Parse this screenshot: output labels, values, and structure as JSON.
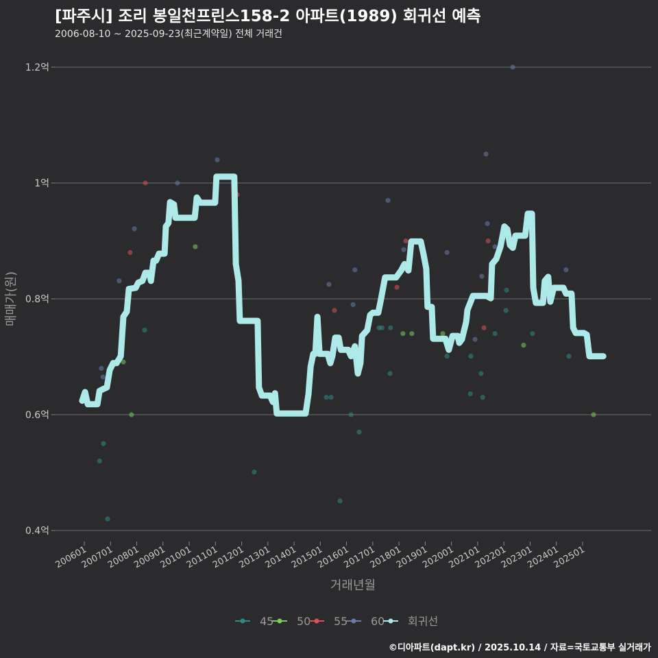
{
  "title": "[파주시] 조리 봉일천프린스158-2 아파트(1989) 회귀선 예측",
  "subtitle": "2006-08-10 ~ 2025-09-23(최근계약일) 전체 거래건",
  "footer": "©디아파트(dapt.kr) / 2025.10.14 / 자료=국토교통부 실거래가",
  "chart_data": {
    "type": "scatter",
    "xlabel": "거래년월",
    "ylabel": "매매가(원)",
    "xlim": [
      2005.4,
      2028.3
    ],
    "ylim": [
      0.38,
      1.24
    ],
    "yticks": [
      {
        "v": 0.4,
        "label": "0.4억"
      },
      {
        "v": 0.6,
        "label": "0.6억"
      },
      {
        "v": 0.8,
        "label": "0.8억"
      },
      {
        "v": 1.0,
        "label": "1억"
      },
      {
        "v": 1.2,
        "label": "1.2억"
      }
    ],
    "xticks": [
      {
        "v": 2006,
        "label": "200601"
      },
      {
        "v": 2007,
        "label": "200701"
      },
      {
        "v": 2008,
        "label": "200801"
      },
      {
        "v": 2009,
        "label": "200901"
      },
      {
        "v": 2010,
        "label": "201001"
      },
      {
        "v": 2011,
        "label": "201101"
      },
      {
        "v": 2012,
        "label": "201201"
      },
      {
        "v": 2013,
        "label": "201301"
      },
      {
        "v": 2014,
        "label": "201401"
      },
      {
        "v": 2015,
        "label": "201501"
      },
      {
        "v": 2016,
        "label": "201601"
      },
      {
        "v": 2017,
        "label": "201701"
      },
      {
        "v": 2018,
        "label": "201801"
      },
      {
        "v": 2019,
        "label": "201901"
      },
      {
        "v": 2020,
        "label": "202001"
      },
      {
        "v": 2021,
        "label": "202101"
      },
      {
        "v": 2022,
        "label": "202201"
      },
      {
        "v": 2023,
        "label": "202301"
      },
      {
        "v": 2024,
        "label": "202401"
      },
      {
        "v": 2025,
        "label": "202501"
      }
    ],
    "legend": {
      "position": "bottom",
      "entries": [
        "45",
        "50",
        "55",
        "60",
        "회귀선"
      ]
    },
    "colors": {
      "45": "#2f8a85",
      "50": "#7ccc5e",
      "55": "#d9525a",
      "60": "#6c7ca8",
      "회귀선": "#aee9ea"
    },
    "series": [
      {
        "name": "45",
        "points": [
          [
            2006.58,
            0.52
          ],
          [
            2006.73,
            0.55
          ],
          [
            2006.89,
            0.42
          ],
          [
            2008.3,
            0.746
          ],
          [
            2012.48,
            0.501
          ],
          [
            2015.23,
            0.63
          ],
          [
            2015.41,
            0.63
          ],
          [
            2015.75,
            0.451
          ],
          [
            2016.17,
            0.6
          ],
          [
            2016.48,
            0.57
          ],
          [
            2017.66,
            0.671
          ],
          [
            2017.68,
            0.75
          ],
          [
            2017.24,
            0.75
          ],
          [
            2017.35,
            0.75
          ],
          [
            2019.83,
            0.701
          ],
          [
            2020.72,
            0.636
          ],
          [
            2020.74,
            0.701
          ],
          [
            2021.13,
            0.671
          ],
          [
            2021.19,
            0.63
          ],
          [
            2021.66,
            0.74
          ],
          [
            2022.08,
            0.78
          ],
          [
            2022.1,
            0.815
          ],
          [
            2023.09,
            0.74
          ],
          [
            2024.48,
            0.701
          ]
        ]
      },
      {
        "name": "50",
        "points": [
          [
            2007.8,
            0.6
          ],
          [
            2007.49,
            0.691
          ],
          [
            2010.23,
            0.89
          ],
          [
            2018.15,
            0.74
          ],
          [
            2018.49,
            0.74
          ],
          [
            2019.67,
            0.74
          ],
          [
            2022.75,
            0.72
          ],
          [
            2025.42,
            0.6
          ]
        ]
      },
      {
        "name": "55",
        "points": [
          [
            2007.75,
            0.88
          ],
          [
            2008.33,
            1.0
          ],
          [
            2011.83,
            0.98
          ],
          [
            2015.54,
            0.78
          ],
          [
            2017.92,
            0.82
          ],
          [
            2018.26,
            0.9
          ],
          [
            2021.24,
            0.75
          ],
          [
            2021.4,
            0.9
          ]
        ]
      },
      {
        "name": "60",
        "points": [
          [
            2006.65,
            0.68
          ],
          [
            2006.71,
            0.665
          ],
          [
            2007.33,
            0.831
          ],
          [
            2007.91,
            0.921
          ],
          [
            2009.55,
            1.0
          ],
          [
            2011.07,
            1.04
          ],
          [
            2015.33,
            0.825
          ],
          [
            2016.25,
            0.79
          ],
          [
            2016.32,
            0.85
          ],
          [
            2017.58,
            0.97
          ],
          [
            2018.18,
            0.885
          ],
          [
            2019.83,
            0.88
          ],
          [
            2021.16,
            0.839
          ],
          [
            2021.32,
            1.05
          ],
          [
            2021.37,
            0.93
          ],
          [
            2021.66,
            0.89
          ],
          [
            2022.34,
            1.2
          ],
          [
            2020.9,
            0.73
          ],
          [
            2024.37,
            0.85
          ]
        ]
      }
    ],
    "regression": [
      [
        2005.92,
        0.624
      ],
      [
        2006.03,
        0.639
      ],
      [
        2006.13,
        0.618
      ],
      [
        2006.5,
        0.618
      ],
      [
        2006.58,
        0.641
      ],
      [
        2006.71,
        0.644
      ],
      [
        2006.86,
        0.647
      ],
      [
        2006.97,
        0.677
      ],
      [
        2007.1,
        0.689
      ],
      [
        2007.23,
        0.689
      ],
      [
        2007.39,
        0.701
      ],
      [
        2007.49,
        0.769
      ],
      [
        2007.62,
        0.778
      ],
      [
        2007.7,
        0.817
      ],
      [
        2007.96,
        0.819
      ],
      [
        2008.06,
        0.828
      ],
      [
        2008.22,
        0.831
      ],
      [
        2008.33,
        0.845
      ],
      [
        2008.48,
        0.845
      ],
      [
        2008.54,
        0.831
      ],
      [
        2008.64,
        0.866
      ],
      [
        2008.74,
        0.866
      ],
      [
        2008.85,
        0.878
      ],
      [
        2009.06,
        0.878
      ],
      [
        2009.11,
        0.925
      ],
      [
        2009.21,
        0.931
      ],
      [
        2009.27,
        0.967
      ],
      [
        2009.42,
        0.963
      ],
      [
        2009.48,
        0.94
      ],
      [
        2010.21,
        0.94
      ],
      [
        2010.29,
        0.975
      ],
      [
        2010.42,
        0.966
      ],
      [
        2010.99,
        0.966
      ],
      [
        2011.04,
        1.011
      ],
      [
        2011.72,
        1.011
      ],
      [
        2011.78,
        0.86
      ],
      [
        2011.88,
        0.831
      ],
      [
        2011.93,
        0.762
      ],
      [
        2012.61,
        0.762
      ],
      [
        2012.66,
        0.647
      ],
      [
        2012.77,
        0.633
      ],
      [
        2013.08,
        0.633
      ],
      [
        2013.19,
        0.622
      ],
      [
        2013.27,
        0.637
      ],
      [
        2013.34,
        0.602
      ],
      [
        2014.44,
        0.602
      ],
      [
        2014.55,
        0.636
      ],
      [
        2014.63,
        0.683
      ],
      [
        2014.73,
        0.705
      ],
      [
        2014.81,
        0.705
      ],
      [
        2014.89,
        0.769
      ],
      [
        2014.97,
        0.705
      ],
      [
        2015.28,
        0.705
      ],
      [
        2015.38,
        0.689
      ],
      [
        2015.46,
        0.701
      ],
      [
        2015.57,
        0.733
      ],
      [
        2015.7,
        0.733
      ],
      [
        2015.78,
        0.712
      ],
      [
        2016.06,
        0.712
      ],
      [
        2016.17,
        0.701
      ],
      [
        2016.32,
        0.718
      ],
      [
        2016.43,
        0.671
      ],
      [
        2016.53,
        0.689
      ],
      [
        2016.59,
        0.736
      ],
      [
        2016.79,
        0.746
      ],
      [
        2016.9,
        0.772
      ],
      [
        2017.0,
        0.776
      ],
      [
        2017.21,
        0.776
      ],
      [
        2017.32,
        0.801
      ],
      [
        2017.47,
        0.837
      ],
      [
        2017.89,
        0.837
      ],
      [
        2018.08,
        0.849
      ],
      [
        2018.21,
        0.86
      ],
      [
        2018.36,
        0.849
      ],
      [
        2018.47,
        0.899
      ],
      [
        2018.83,
        0.899
      ],
      [
        2018.94,
        0.876
      ],
      [
        2019.04,
        0.852
      ],
      [
        2019.09,
        0.786
      ],
      [
        2019.25,
        0.786
      ],
      [
        2019.3,
        0.731
      ],
      [
        2019.77,
        0.731
      ],
      [
        2019.9,
        0.712
      ],
      [
        2020.04,
        0.736
      ],
      [
        2020.24,
        0.736
      ],
      [
        2020.3,
        0.724
      ],
      [
        2020.4,
        0.73
      ],
      [
        2020.56,
        0.76
      ],
      [
        2020.61,
        0.781
      ],
      [
        2020.82,
        0.805
      ],
      [
        2021.34,
        0.805
      ],
      [
        2021.5,
        0.801
      ],
      [
        2021.55,
        0.86
      ],
      [
        2021.71,
        0.869
      ],
      [
        2021.87,
        0.89
      ],
      [
        2022.02,
        0.925
      ],
      [
        2022.13,
        0.92
      ],
      [
        2022.23,
        0.893
      ],
      [
        2022.34,
        0.888
      ],
      [
        2022.44,
        0.909
      ],
      [
        2022.81,
        0.909
      ],
      [
        2022.91,
        0.947
      ],
      [
        2023.07,
        0.947
      ],
      [
        2023.12,
        0.819
      ],
      [
        2023.22,
        0.793
      ],
      [
        2023.49,
        0.793
      ],
      [
        2023.56,
        0.831
      ],
      [
        2023.69,
        0.838
      ],
      [
        2023.77,
        0.795
      ],
      [
        2023.9,
        0.819
      ],
      [
        2024.27,
        0.819
      ],
      [
        2024.37,
        0.809
      ],
      [
        2024.58,
        0.809
      ],
      [
        2024.64,
        0.75
      ],
      [
        2024.74,
        0.741
      ],
      [
        2024.9,
        0.741
      ],
      [
        2025.05,
        0.741
      ],
      [
        2025.16,
        0.738
      ],
      [
        2025.26,
        0.701
      ],
      [
        2025.79,
        0.701
      ]
    ]
  }
}
